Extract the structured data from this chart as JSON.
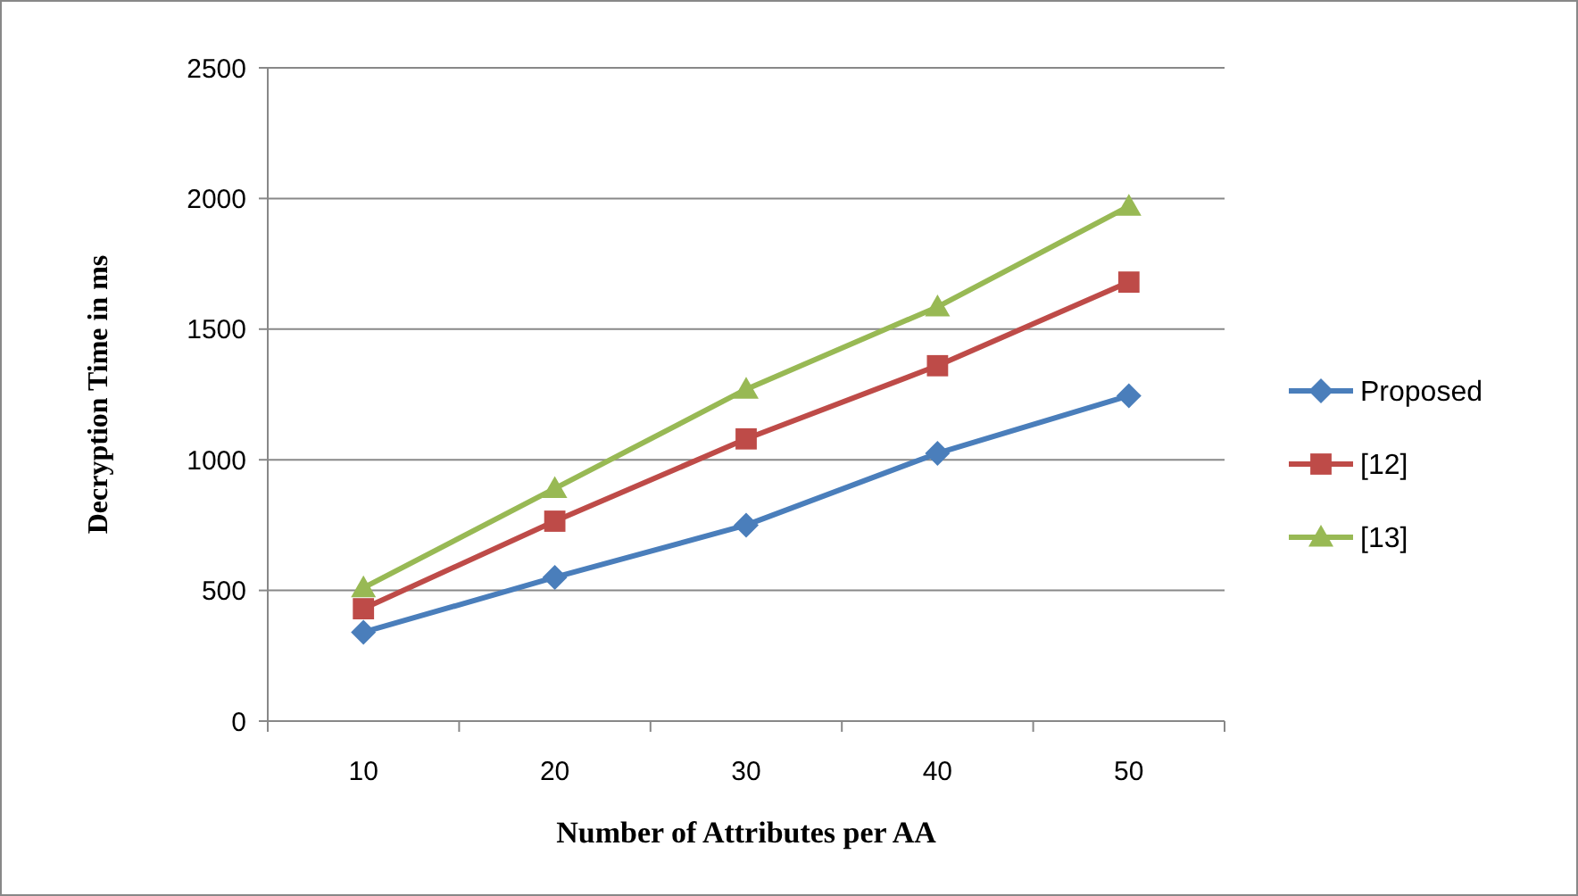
{
  "chart_data": {
    "type": "line",
    "xlabel": "Number of Attributes  per AA",
    "ylabel": "Decryption Time in ms",
    "categories": [
      "10",
      "20",
      "30",
      "40",
      "50"
    ],
    "ylim": [
      0,
      2500
    ],
    "yticks": [
      0,
      500,
      1000,
      1500,
      2000,
      2500
    ],
    "grid": "y",
    "legend": "right",
    "series": [
      {
        "name": "Proposed",
        "color": "#4a7ebb",
        "marker": "diamond",
        "values": [
          340,
          550,
          750,
          1025,
          1245
        ]
      },
      {
        "name": "[12]",
        "color": "#be4b48",
        "marker": "square",
        "values": [
          430,
          765,
          1080,
          1360,
          1680
        ]
      },
      {
        "name": "[13]",
        "color": "#98b954",
        "marker": "triangle",
        "values": [
          510,
          890,
          1270,
          1585,
          1970
        ]
      }
    ]
  }
}
